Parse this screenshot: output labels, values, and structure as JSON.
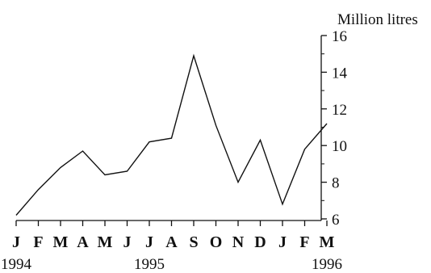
{
  "chart_data": {
    "type": "line",
    "title": "",
    "xlabel": "",
    "ylabel": "Million litres",
    "y_axis_position": "right",
    "ylim": [
      6,
      16
    ],
    "y_ticks": [
      "6",
      "8",
      "10",
      "12",
      "14",
      "16"
    ],
    "categories": [
      "J",
      "F",
      "M",
      "A",
      "M",
      "J",
      "J",
      "A",
      "S",
      "O",
      "N",
      "D",
      "J",
      "F",
      "M"
    ],
    "year_labels": [
      "1994",
      "1995",
      "1996"
    ],
    "series": [
      {
        "values": [
          6.2,
          7.6,
          8.8,
          9.7,
          8.4,
          8.6,
          10.2,
          10.4,
          14.9,
          11.1,
          8.0,
          10.3,
          6.8,
          9.8,
          11.2
        ]
      }
    ],
    "grid": false,
    "legend": "none",
    "colors": {
      "line": "#111111",
      "axis": "#111111"
    }
  }
}
